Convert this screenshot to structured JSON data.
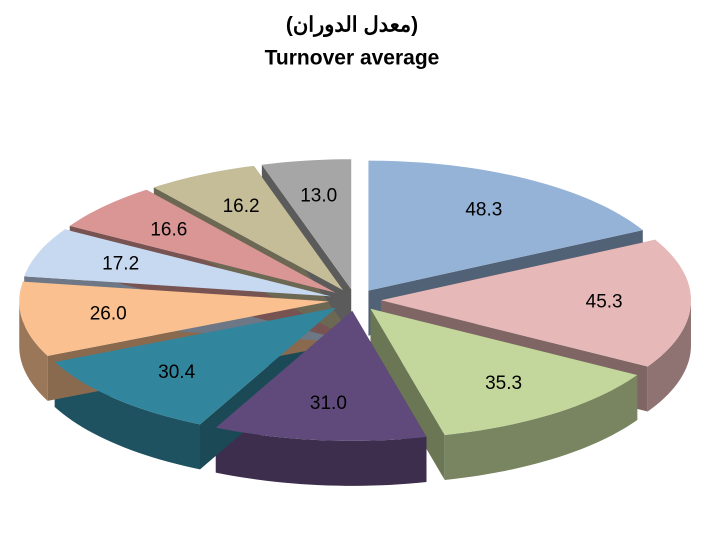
{
  "chart_data": {
    "type": "pie3d",
    "title": [
      "(معدل الدوران)",
      "Turnover average"
    ],
    "values": [
      48.3,
      45.3,
      35.3,
      31.0,
      30.4,
      26.0,
      17.2,
      16.6,
      16.2,
      13.0
    ],
    "value_labels": [
      "48.3",
      "45.3",
      "35.3",
      "31.0",
      "30.4",
      "26.0",
      "17.2",
      "16.6",
      "16.2",
      "13.0"
    ],
    "colors": [
      "#95b3d7",
      "#e6b9b8",
      "#c3d69b",
      "#604a7b",
      "#31859c",
      "#fac090",
      "#c6d9f1",
      "#d99694",
      "#c4bd97",
      "#a6a6a6"
    ]
  }
}
